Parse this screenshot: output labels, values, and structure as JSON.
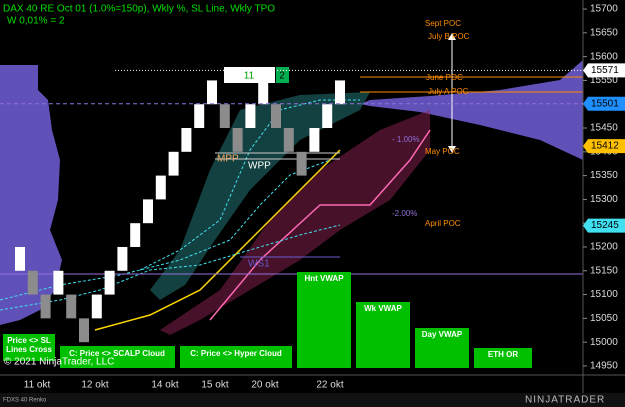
{
  "chart_data": {
    "type": "renko",
    "title": "DAX 40 RE Oct 01 (1.0%=150p), Wkly %, SL Line, Wkly TPO",
    "subtitle": "W 0,01% = 2",
    "open": [
      15150,
      15150,
      15100,
      15100,
      15100,
      15050,
      15050,
      15100,
      15150,
      15200,
      15250,
      15300,
      15350,
      15400,
      15450,
      15500,
      15500,
      15450,
      15450,
      15500,
      15500,
      15450,
      15400,
      15400,
      15450,
      15500
    ],
    "close": [
      15200,
      15100,
      15050,
      15150,
      15050,
      15000,
      15100,
      15150,
      15200,
      15250,
      15300,
      15350,
      15400,
      15450,
      15500,
      15550,
      15450,
      15400,
      15500,
      15550,
      15450,
      15400,
      15350,
      15450,
      15500,
      15550
    ],
    "up_color": "#ffffff",
    "down_color": "#8c8c8c",
    "ylim": [
      14931,
      15719
    ],
    "yticks": [
      14950,
      15000,
      15050,
      15100,
      15150,
      15200,
      15250,
      15300,
      15350,
      15400,
      15450,
      15500,
      15550,
      15600,
      15650,
      15700
    ],
    "x_labels": [
      "11 okt",
      "12 okt",
      "14 okt",
      "15 okt",
      "20 okt",
      "22 okt"
    ],
    "price_markers": [
      {
        "value": 15571,
        "color": "#ffffff"
      },
      {
        "value": 15501,
        "color": "#1e90ff"
      },
      {
        "value": 15412,
        "color": "#ffc000"
      },
      {
        "value": 15245,
        "color": "#40e0f0"
      }
    ],
    "annotations": [
      "Sept POC",
      "July B POC",
      "June POC",
      "July A POC",
      "May POC",
      "April POC",
      "MPP",
      "WPP",
      "WS1",
      "- 1.00%",
      "-2.00%"
    ],
    "brick_counter": [
      "11",
      "2"
    ],
    "buttons": [
      "Price <> SL",
      "Lines Cross",
      "C: Price <> SCALP Cloud",
      "C: Price <> Hyper Cloud"
    ],
    "vwap_labels": [
      "Hnt VWAP",
      "Wk VWAP",
      "Day VWAP",
      "ETH OR"
    ],
    "copyright": "© 2021 NinjaTrader, LLC",
    "instrument": "FDXS 40 Renko",
    "logo": "NINJATRADER"
  }
}
